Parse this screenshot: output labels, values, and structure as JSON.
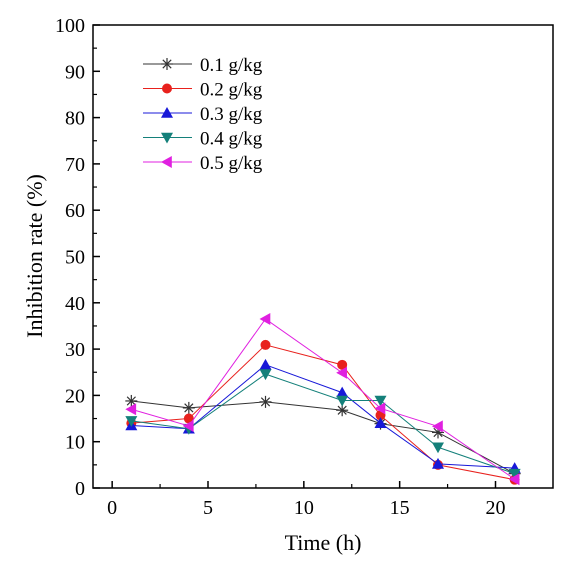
{
  "chart_data": {
    "type": "line",
    "title": "",
    "xlabel": "Time (h)",
    "ylabel": "Inhibition rate (%)",
    "xlim": [
      -1,
      23
    ],
    "ylim": [
      0,
      100
    ],
    "xticks": [
      0,
      5,
      10,
      15,
      20
    ],
    "yticks": [
      0,
      10,
      20,
      30,
      40,
      50,
      60,
      70,
      80,
      90,
      100
    ],
    "grid": false,
    "legend_position": "top-left",
    "x": [
      1,
      4,
      8,
      12,
      14,
      17,
      21
    ],
    "series": [
      {
        "name": "0.1 g/kg",
        "color": "#333333",
        "marker": "asterisk",
        "values": [
          18.8,
          17.3,
          18.6,
          16.8,
          13.9,
          12.0,
          3.1
        ]
      },
      {
        "name": "0.2 g/kg",
        "color": "#e8211d",
        "marker": "circle",
        "values": [
          14.0,
          15.0,
          30.9,
          26.6,
          15.7,
          5.0,
          1.8
        ]
      },
      {
        "name": "0.3 g/kg",
        "color": "#1818d8",
        "marker": "triangle-up",
        "values": [
          13.5,
          12.8,
          26.6,
          20.6,
          14.0,
          5.2,
          4.3
        ]
      },
      {
        "name": "0.4 g/kg",
        "color": "#14807a",
        "marker": "triangle-down",
        "values": [
          14.5,
          12.8,
          24.6,
          18.9,
          18.9,
          8.8,
          3.1
        ]
      },
      {
        "name": "0.5 g/kg",
        "color": "#e020e0",
        "marker": "triangle-left",
        "values": [
          17.0,
          13.4,
          36.5,
          24.9,
          17.2,
          13.3,
          1.9
        ]
      }
    ]
  }
}
